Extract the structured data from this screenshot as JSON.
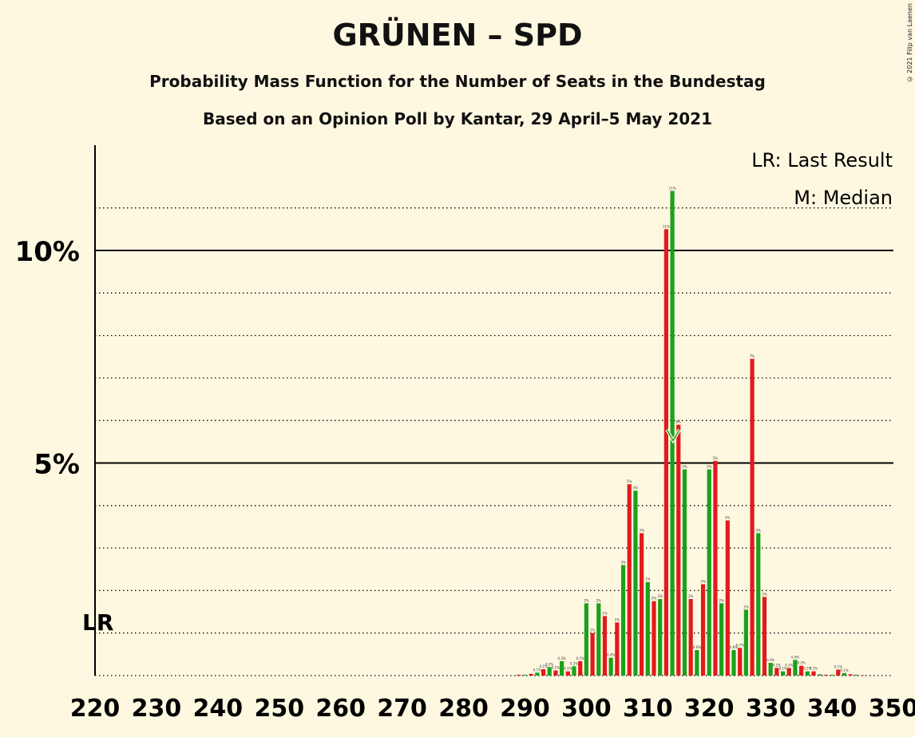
{
  "chart_data": {
    "type": "bar",
    "title": "GRÜNEN – SPD",
    "subtitle": "Probability Mass Function for the Number of Seats in the Bundestag",
    "source": "Based on an Opinion Poll by Kantar, 29 April–5 May 2021",
    "copyright": "© 2021 Filip van Laenen",
    "legend": [
      "LR: Last Result",
      "M: Median"
    ],
    "xlim": [
      220,
      350
    ],
    "ylim": [
      0,
      12
    ],
    "x_ticks": [
      220,
      230,
      240,
      250,
      260,
      270,
      280,
      290,
      300,
      310,
      320,
      330,
      340,
      350
    ],
    "y_ticks": [
      {
        "value": 5,
        "label": "5%"
      },
      {
        "value": 10,
        "label": "10%"
      }
    ],
    "grid": "dotted every 1%, solid at 5% and 10%",
    "last_result": {
      "seats": 220,
      "label": "LR"
    },
    "median": {
      "seats": 314,
      "label": "M"
    },
    "colors": {
      "odd": "#e31a1c",
      "even": "#1ba11b",
      "background": "#fff8e1"
    },
    "bars": [
      {
        "x": 289,
        "y": 0.02
      },
      {
        "x": 290,
        "y": 0.02
      },
      {
        "x": 291,
        "y": 0.04
      },
      {
        "x": 292,
        "y": 0.07
      },
      {
        "x": 293,
        "y": 0.15
      },
      {
        "x": 294,
        "y": 0.2
      },
      {
        "x": 295,
        "y": 0.12
      },
      {
        "x": 296,
        "y": 0.34
      },
      {
        "x": 297,
        "y": 0.1
      },
      {
        "x": 298,
        "y": 0.22
      },
      {
        "x": 299,
        "y": 0.34
      },
      {
        "x": 300,
        "y": 1.7
      },
      {
        "x": 301,
        "y": 1.0
      },
      {
        "x": 302,
        "y": 1.7
      },
      {
        "x": 303,
        "y": 1.4
      },
      {
        "x": 304,
        "y": 0.42
      },
      {
        "x": 305,
        "y": 1.25
      },
      {
        "x": 306,
        "y": 2.6
      },
      {
        "x": 307,
        "y": 4.5
      },
      {
        "x": 308,
        "y": 4.35
      },
      {
        "x": 309,
        "y": 3.35
      },
      {
        "x": 310,
        "y": 2.2
      },
      {
        "x": 311,
        "y": 1.75
      },
      {
        "x": 312,
        "y": 1.8
      },
      {
        "x": 313,
        "y": 10.5
      },
      {
        "x": 314,
        "y": 11.4
      },
      {
        "x": 315,
        "y": 5.9
      },
      {
        "x": 316,
        "y": 4.85
      },
      {
        "x": 317,
        "y": 1.8
      },
      {
        "x": 318,
        "y": 0.6
      },
      {
        "x": 319,
        "y": 2.15
      },
      {
        "x": 320,
        "y": 4.85
      },
      {
        "x": 321,
        "y": 5.05
      },
      {
        "x": 322,
        "y": 1.7
      },
      {
        "x": 323,
        "y": 3.65
      },
      {
        "x": 324,
        "y": 0.6
      },
      {
        "x": 325,
        "y": 0.65
      },
      {
        "x": 326,
        "y": 1.55
      },
      {
        "x": 327,
        "y": 7.45
      },
      {
        "x": 328,
        "y": 3.35
      },
      {
        "x": 329,
        "y": 1.85
      },
      {
        "x": 330,
        "y": 0.3
      },
      {
        "x": 331,
        "y": 0.18
      },
      {
        "x": 332,
        "y": 0.1
      },
      {
        "x": 333,
        "y": 0.18
      },
      {
        "x": 334,
        "y": 0.37
      },
      {
        "x": 335,
        "y": 0.23
      },
      {
        "x": 336,
        "y": 0.1
      },
      {
        "x": 337,
        "y": 0.1
      },
      {
        "x": 338,
        "y": 0.03
      },
      {
        "x": 339,
        "y": 0.02
      },
      {
        "x": 340,
        "y": 0.02
      },
      {
        "x": 341,
        "y": 0.14
      },
      {
        "x": 342,
        "y": 0.06
      },
      {
        "x": 343,
        "y": 0.03
      },
      {
        "x": 344,
        "y": 0.02
      },
      {
        "x": 345,
        "y": 0.01
      }
    ]
  }
}
